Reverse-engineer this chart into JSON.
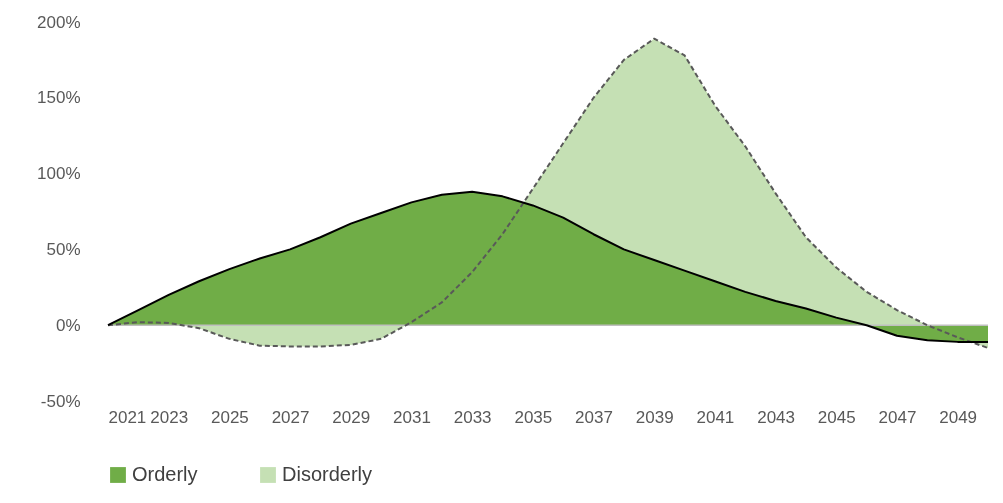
{
  "chart_data": {
    "type": "area",
    "x": [
      2021,
      2022,
      2023,
      2024,
      2025,
      2026,
      2027,
      2028,
      2029,
      2030,
      2031,
      2032,
      2033,
      2034,
      2035,
      2036,
      2037,
      2038,
      2039,
      2040,
      2041,
      2042,
      2043,
      2044,
      2045,
      2046,
      2047,
      2048,
      2049,
      2050
    ],
    "series": [
      {
        "name": "Orderly",
        "color": "#70ad47",
        "line_style": "solid",
        "values": [
          0,
          10,
          20,
          29,
          37,
          44,
          50,
          58,
          67,
          74,
          81,
          86,
          88,
          85,
          79,
          71,
          60,
          50,
          43,
          36,
          29,
          22,
          16,
          11,
          5,
          0,
          -7,
          -10,
          -11,
          -11
        ]
      },
      {
        "name": "Disorderly",
        "color": "#c5e0b4",
        "line_style": "dashed",
        "values": [
          0,
          2,
          1.5,
          -2,
          -9,
          -13.5,
          -14,
          -14,
          -13,
          -9,
          2,
          15,
          35,
          60,
          90,
          120,
          150,
          175,
          189,
          178,
          145,
          118,
          87,
          58,
          38,
          22,
          10,
          0,
          -8,
          -15
        ]
      }
    ],
    "xlim": [
      2021,
      2050
    ],
    "xticks": [
      2021,
      2023,
      2025,
      2027,
      2029,
      2031,
      2033,
      2035,
      2037,
      2039,
      2041,
      2043,
      2045,
      2047,
      2049
    ],
    "ylim": [
      -50,
      200
    ],
    "yticks": [
      {
        "value": -50,
        "label": "-50%"
      },
      {
        "value": 0,
        "label": "0%"
      },
      {
        "value": 50,
        "label": "50%"
      },
      {
        "value": 100,
        "label": "100%"
      },
      {
        "value": 150,
        "label": "150%"
      },
      {
        "value": 200,
        "label": "200%"
      }
    ],
    "ref_lines": [
      {
        "axis": "y",
        "value": 0,
        "color": "#bfbfbf"
      }
    ],
    "grid": false,
    "legend": "bottom"
  }
}
